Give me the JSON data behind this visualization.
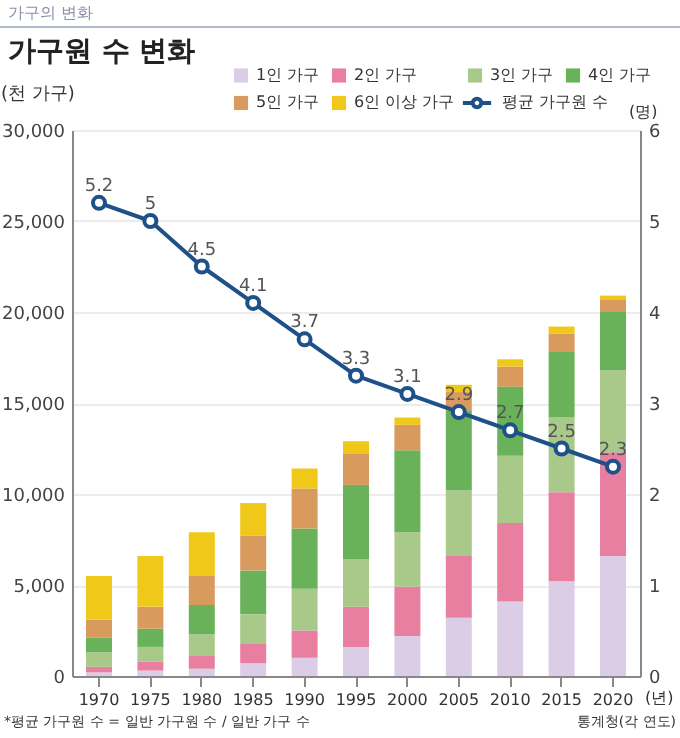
{
  "chart_data": {
    "type": "bar",
    "title": "가구원 수 변화",
    "xlabel": "(년)",
    "ylabel": "(천 가구)",
    "y2label": "(명)",
    "annotations": [
      "가구의 변화",
      "*평균 가구원 수 = 일반 가구원 수 / 일반 가구 수",
      "통계청(각 연도)"
    ],
    "categories": [
      "1970",
      "1975",
      "1980",
      "1985",
      "1990",
      "1995",
      "2000",
      "2005",
      "2010",
      "2015",
      "2020"
    ],
    "stacked": true,
    "legend": "top right",
    "grid": "y",
    "marker": "circle",
    "line_style": "solid",
    "ylim": [
      0,
      30000
    ],
    "yticks": [
      {
        "value": 0,
        "label": "0"
      },
      {
        "value": 5000,
        "label": "5,000"
      },
      {
        "value": 10000,
        "label": "10,000"
      },
      {
        "value": 15000,
        "label": "15,000"
      },
      {
        "value": 20000,
        "label": "20,000"
      },
      {
        "value": 25000,
        "label": "25,000"
      },
      {
        "value": 30000,
        "label": "30,000"
      }
    ],
    "y2lim": [
      0,
      6
    ],
    "y2ticks": [
      0,
      1,
      2,
      3,
      4,
      5,
      6
    ],
    "series": [
      {
        "name": "1인 가구",
        "color": "#dccde6",
        "values": [
          200,
          300,
          400,
          700,
          1000,
          1600,
          2200,
          3200,
          4100,
          5200,
          6600
        ]
      },
      {
        "name": "2인 가구",
        "color": "#e87fa0",
        "values": [
          300,
          500,
          700,
          1100,
          1500,
          2200,
          2700,
          3400,
          4300,
          4900,
          5700
        ]
      },
      {
        "name": "3인 가구",
        "color": "#a8c98a",
        "values": [
          800,
          800,
          1200,
          1600,
          2300,
          2600,
          3000,
          3600,
          3700,
          4100,
          4500
        ]
      },
      {
        "name": "4인 가구",
        "color": "#6ab25a",
        "values": [
          800,
          1000,
          1600,
          2400,
          3300,
          4100,
          4500,
          4400,
          3800,
          3600,
          3200
        ]
      },
      {
        "name": "5인 가구",
        "color": "#d99a5e",
        "values": [
          1000,
          1200,
          1600,
          1900,
          2200,
          1700,
          1400,
          1000,
          1100,
          1000,
          700
        ]
      },
      {
        "name": "6인 이상 가구",
        "color": "#f0c81a",
        "values": [
          2400,
          2800,
          2400,
          1800,
          1100,
          700,
          400,
          400,
          400,
          400,
          200
        ]
      },
      {
        "name": "평균 가구원 수",
        "type": "line",
        "axis": "y2",
        "color": "#1e5089",
        "values": [
          5.2,
          5,
          4.5,
          4.1,
          3.7,
          3.3,
          3.1,
          2.9,
          2.7,
          2.5,
          2.3
        ],
        "value_labels": [
          "5.2",
          "5",
          "4.5",
          "4.1",
          "3.7",
          "3.3",
          "3.1",
          "2.9",
          "2.7",
          "2.5",
          "2.3"
        ]
      }
    ]
  }
}
